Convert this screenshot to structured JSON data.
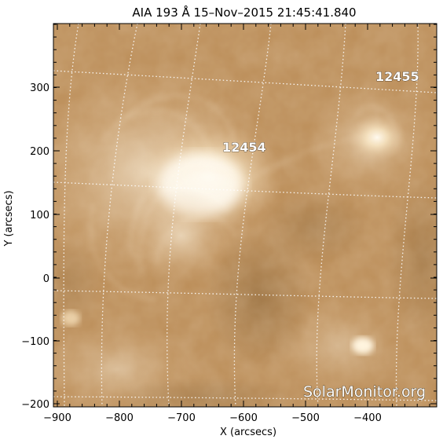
{
  "title": "AIA 193 Å 15–Nov–2015 21:45:41.840",
  "x_axis": {
    "label": "X (arcsecs)",
    "ticks": [
      "−900",
      "−800",
      "−700",
      "−600",
      "−500",
      "−400"
    ]
  },
  "y_axis": {
    "label": "Y (arcsecs)",
    "ticks": [
      "−200",
      "−100",
      "0",
      "100",
      "200",
      "300"
    ]
  },
  "regions": [
    {
      "label": "12454"
    },
    {
      "label": "12455"
    }
  ],
  "watermark": "SolarMonitor.org",
  "colors": {
    "base": "#b88a55",
    "bright": "#fff4dc",
    "dark": "#8a6436",
    "grid": "#ffffff"
  }
}
